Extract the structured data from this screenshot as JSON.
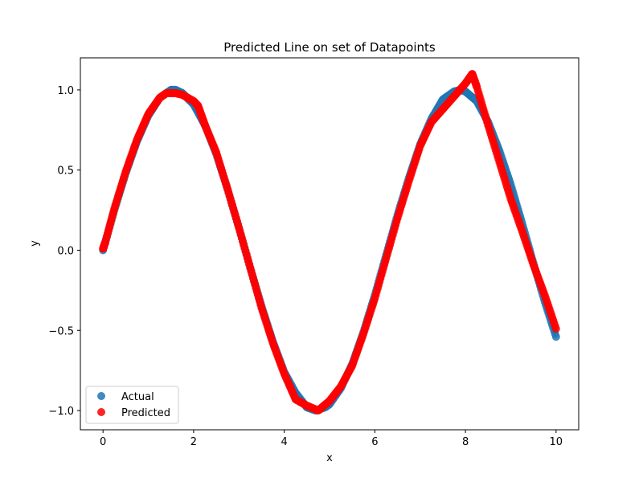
{
  "chart_data": {
    "type": "scatter",
    "title": "Predicted Line on set of Datapoints",
    "xlabel": "x",
    "ylabel": "y",
    "xlim": [
      -0.5,
      10.5
    ],
    "ylim": [
      -1.12,
      1.2
    ],
    "xticks": [
      0,
      2,
      4,
      6,
      8,
      10
    ],
    "xtick_labels": [
      "0",
      "2",
      "4",
      "6",
      "8",
      "10"
    ],
    "yticks": [
      -1.0,
      -0.5,
      0.0,
      0.5,
      1.0
    ],
    "ytick_labels": [
      "−1.0",
      "−0.5",
      "0.0",
      "0.5",
      "1.0"
    ],
    "grid": false,
    "legend_position": "lower-left",
    "series": [
      {
        "name": "Actual",
        "color": "#1f77b4",
        "x": [
          0.0,
          0.25,
          0.5,
          0.75,
          1.0,
          1.25,
          1.5,
          1.6,
          1.75,
          2.0,
          2.25,
          2.5,
          2.75,
          3.0,
          3.25,
          3.5,
          3.75,
          4.0,
          4.25,
          4.5,
          4.7,
          4.9,
          5.0,
          5.25,
          5.5,
          5.75,
          6.0,
          6.25,
          6.5,
          6.75,
          7.0,
          7.25,
          7.5,
          7.75,
          7.9,
          8.0,
          8.25,
          8.5,
          8.75,
          9.0,
          9.25,
          9.5,
          9.75,
          10.0
        ],
        "y": [
          0.0,
          0.25,
          0.48,
          0.68,
          0.84,
          0.95,
          1.0,
          1.0,
          0.98,
          0.91,
          0.78,
          0.6,
          0.38,
          0.14,
          -0.11,
          -0.35,
          -0.57,
          -0.76,
          -0.89,
          -0.98,
          -1.0,
          -0.98,
          -0.96,
          -0.86,
          -0.71,
          -0.51,
          -0.28,
          -0.03,
          0.22,
          0.45,
          0.66,
          0.82,
          0.94,
          0.99,
          1.0,
          0.99,
          0.93,
          0.8,
          0.62,
          0.41,
          0.17,
          -0.08,
          -0.32,
          -0.54
        ]
      },
      {
        "name": "Predicted",
        "color": "#ff0000",
        "x": [
          0.0,
          0.05,
          0.25,
          0.5,
          0.75,
          1.0,
          1.25,
          1.4,
          1.6,
          1.75,
          2.0,
          2.1,
          2.25,
          2.5,
          2.75,
          3.0,
          3.25,
          3.5,
          3.75,
          4.0,
          4.25,
          4.5,
          4.75,
          5.0,
          5.25,
          5.5,
          5.75,
          6.0,
          6.25,
          6.5,
          6.75,
          7.0,
          7.25,
          7.5,
          7.75,
          8.0,
          8.15,
          8.25,
          8.5,
          8.75,
          9.0,
          9.25,
          9.5,
          9.75,
          10.0
        ],
        "y": [
          0.01,
          0.05,
          0.26,
          0.49,
          0.69,
          0.85,
          0.95,
          0.98,
          0.98,
          0.97,
          0.93,
          0.9,
          0.78,
          0.61,
          0.38,
          0.14,
          -0.11,
          -0.36,
          -0.58,
          -0.77,
          -0.93,
          -0.97,
          -1.0,
          -0.94,
          -0.85,
          -0.72,
          -0.52,
          -0.3,
          -0.05,
          0.2,
          0.43,
          0.65,
          0.8,
          0.88,
          0.96,
          1.04,
          1.1,
          1.02,
          0.78,
          0.55,
          0.32,
          0.12,
          -0.09,
          -0.28,
          -0.49
        ]
      }
    ]
  }
}
